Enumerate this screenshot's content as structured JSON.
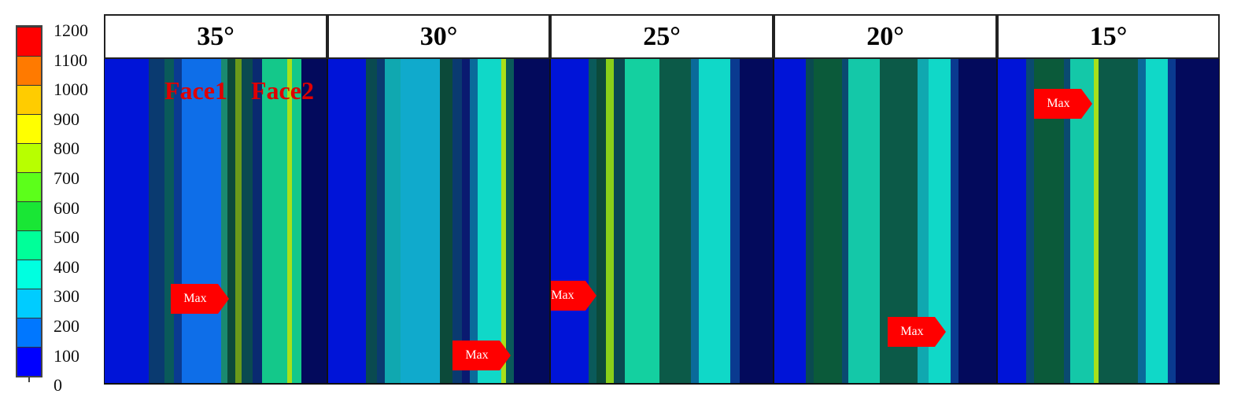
{
  "legend": {
    "ticks": [
      "1200",
      "1100",
      "1000",
      "900",
      "800",
      "700",
      "600",
      "500",
      "400",
      "300",
      "200",
      "100",
      "0"
    ],
    "colors": [
      "#ff0000",
      "#ff7a00",
      "#ffcc00",
      "#ffff00",
      "#b8ff00",
      "#5cff1a",
      "#19e635",
      "#00ff99",
      "#00ffe0",
      "#00ccff",
      "#0077ff",
      "#0000ff"
    ]
  },
  "panels": [
    {
      "label": "35°"
    },
    {
      "label": "30°"
    },
    {
      "label": "25°"
    },
    {
      "label": "20°"
    },
    {
      "label": "15°"
    }
  ],
  "faces": {
    "face1": "Face1",
    "face2": "Face2"
  },
  "max_label": "Max",
  "colors": {
    "background_dark": "#030a5c",
    "background_blue": "#0014d8",
    "marker_red": "#ff0000"
  }
}
